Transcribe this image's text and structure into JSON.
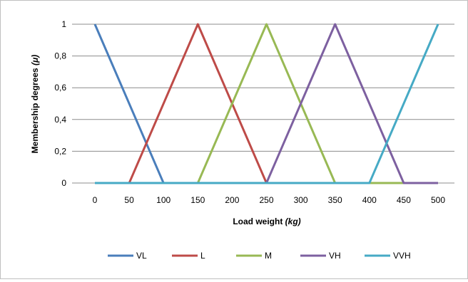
{
  "chart_data": {
    "type": "line",
    "xlabel_main": "Load weight",
    "xlabel_unit": "(kg)",
    "ylabel_main": "Membership degrees",
    "ylabel_unit": "(μ)",
    "xlim": [
      0,
      500
    ],
    "ylim": [
      0,
      1
    ],
    "x_ticks": [
      "0",
      "50",
      "100",
      "150",
      "200",
      "250",
      "300",
      "350",
      "400",
      "450",
      "500"
    ],
    "y_ticks": [
      "0",
      "0,2",
      "0,4",
      "0,6",
      "0,8",
      "1"
    ],
    "grid": "horizontal",
    "legend_position": "bottom",
    "series": [
      {
        "name": "VL",
        "color": "#4a7ebb",
        "points": [
          [
            0,
            1
          ],
          [
            100,
            0
          ],
          [
            500,
            0
          ]
        ]
      },
      {
        "name": "L",
        "color": "#be4b48",
        "points": [
          [
            50,
            0
          ],
          [
            150,
            1
          ],
          [
            250,
            0
          ]
        ]
      },
      {
        "name": "M",
        "color": "#98b954",
        "points": [
          [
            150,
            0
          ],
          [
            250,
            1
          ],
          [
            350,
            0
          ],
          [
            500,
            0
          ]
        ]
      },
      {
        "name": "VH",
        "color": "#7d60a0",
        "points": [
          [
            250,
            0
          ],
          [
            350,
            1
          ],
          [
            450,
            0
          ],
          [
            500,
            0
          ]
        ]
      },
      {
        "name": "VVH",
        "color": "#46aac5",
        "points": [
          [
            0,
            0
          ],
          [
            400,
            0
          ],
          [
            500,
            1
          ]
        ]
      }
    ]
  }
}
